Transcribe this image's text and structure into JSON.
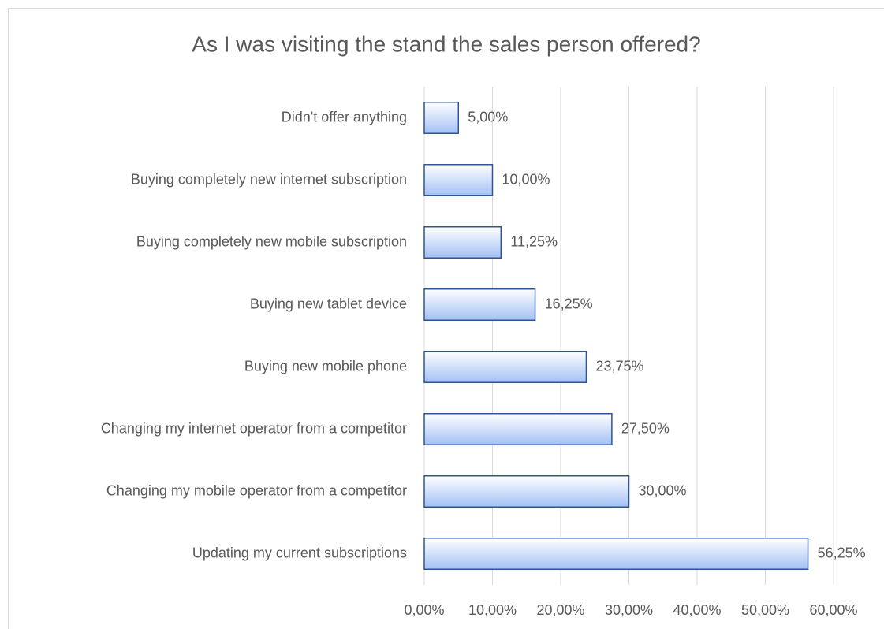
{
  "chart_data": {
    "type": "barh",
    "title": "As I was visiting the stand the sales person offered?",
    "categories": [
      "Didn't offer anything",
      "Buying completely new internet subscription",
      "Buying completely new mobile subscription",
      "Buying new tablet device",
      "Buying new mobile phone",
      "Changing my internet operator from a competitor",
      "Changing my mobile operator from a competitor",
      "Updating my current subscriptions"
    ],
    "values": [
      5,
      10,
      11.25,
      16.25,
      23.75,
      27.5,
      30,
      56.25
    ],
    "value_labels": [
      "5,00%",
      "10,00%",
      "11,25%",
      "16,25%",
      "23,75%",
      "27,50%",
      "30,00%",
      "56,25%"
    ],
    "color": "#a3c1f4",
    "edge_color": "#2f5597",
    "xlim": [
      0,
      60
    ],
    "xticks": [
      {
        "value": 0,
        "label": "0,00%"
      },
      {
        "value": 10,
        "label": "10,00%"
      },
      {
        "value": 20,
        "label": "20,00%"
      },
      {
        "value": 30,
        "label": "30,00%"
      },
      {
        "value": 40,
        "label": "40,00%"
      },
      {
        "value": 50,
        "label": "50,00%"
      },
      {
        "value": 60,
        "label": "60,00%"
      }
    ],
    "grid": true
  }
}
